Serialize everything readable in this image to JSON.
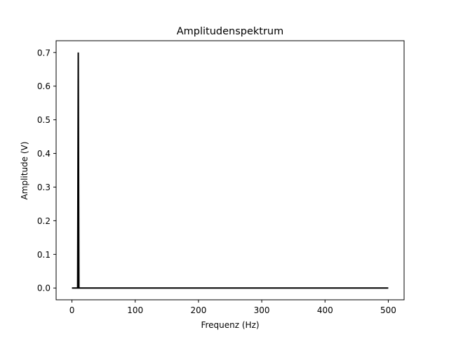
{
  "chart_data": {
    "type": "line",
    "title": "Amplitudenspektrum",
    "xlabel": "Frequenz (Hz)",
    "ylabel": "Amplitude  (V)",
    "xlim": [
      -25,
      525
    ],
    "ylim": [
      -0.035,
      0.735
    ],
    "xticks": [
      0,
      100,
      200,
      300,
      400,
      500
    ],
    "yticks": [
      0.0,
      0.1,
      0.2,
      0.3,
      0.4,
      0.5,
      0.6,
      0.7
    ],
    "xtick_labels": [
      "0",
      "100",
      "200",
      "300",
      "400",
      "500"
    ],
    "ytick_labels": [
      "0.0",
      "0.1",
      "0.2",
      "0.3",
      "0.4",
      "0.5",
      "0.6",
      "0.7"
    ],
    "grid": false,
    "line_color": "#000000",
    "series": [
      {
        "x": [
          0,
          9,
          10,
          11,
          500
        ],
        "values": [
          0.0,
          0.0,
          0.7,
          0.0,
          0.0
        ]
      }
    ]
  }
}
